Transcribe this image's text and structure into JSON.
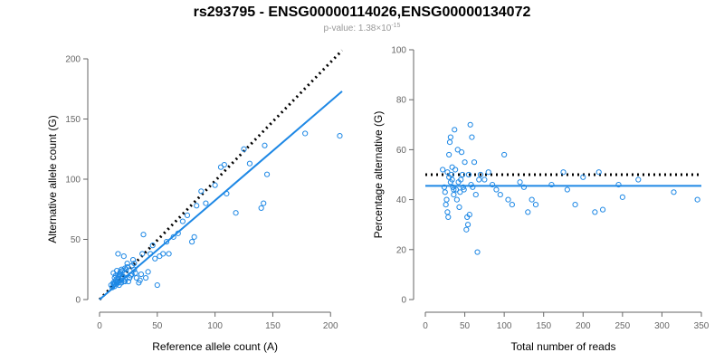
{
  "figure": {
    "title": "rs293795 - ENSG00000114026,ENSG00000134072",
    "subtitle_prefix": "p-value: 1.38×10",
    "subtitle_exponent": "-15"
  },
  "chart_data": [
    {
      "type": "scatter",
      "xlabel": "Reference allele count (A)",
      "ylabel": "Alternative allele count (G)",
      "xlim": [
        0,
        210
      ],
      "ylim": [
        0,
        200
      ],
      "x_ticks": [
        "0",
        "50",
        "100",
        "150",
        "200"
      ],
      "y_ticks": [
        "0",
        "50",
        "100",
        "150",
        "200"
      ],
      "grid": false,
      "point_color": "#1e88e5",
      "fit_color": "#1e88e5",
      "series": [
        {
          "x": [
            10,
            11,
            12,
            12,
            13,
            13,
            14,
            14,
            15,
            15,
            16,
            16,
            17,
            17,
            18,
            18,
            19,
            19,
            20,
            20,
            21,
            22,
            22,
            23,
            24,
            25,
            26,
            27,
            28,
            29,
            30,
            31,
            32,
            34,
            35,
            36,
            37,
            38,
            40,
            42,
            44,
            46,
            48,
            50,
            52,
            55,
            58,
            60,
            64,
            68,
            72,
            76,
            80,
            82,
            84,
            88,
            92,
            100,
            105,
            108,
            110,
            118,
            125,
            130,
            140,
            142,
            143,
            145,
            178,
            208,
            12,
            14,
            16,
            18,
            20,
            22,
            24,
            26,
            28,
            30,
            17,
            19,
            21,
            23,
            15,
            13
          ],
          "y": [
            12,
            10,
            14,
            22,
            18,
            11,
            15,
            20,
            13,
            24,
            17,
            38,
            21,
            12,
            16,
            23,
            25,
            14,
            19,
            18,
            36,
            26,
            17,
            22,
            30,
            15,
            18,
            20,
            28,
            33,
            25,
            22,
            18,
            14,
            16,
            21,
            38,
            54,
            18,
            23,
            38,
            45,
            34,
            12,
            36,
            38,
            48,
            38,
            52,
            55,
            65,
            70,
            48,
            52,
            78,
            90,
            80,
            95,
            110,
            112,
            88,
            72,
            125,
            113,
            76,
            80,
            128,
            104,
            138,
            136,
            13,
            16,
            19,
            21,
            24,
            15,
            27,
            18,
            21,
            30,
            20,
            17,
            15,
            25,
            14,
            13
          ]
        }
      ],
      "reference_line": {
        "style": "dotted",
        "color": "#000000",
        "x": [
          0,
          210
        ],
        "y": [
          0,
          207
        ]
      },
      "fit_line": {
        "style": "solid",
        "x": [
          0,
          210
        ],
        "y": [
          0,
          173
        ]
      }
    },
    {
      "type": "scatter",
      "xlabel": "Total number of reads",
      "ylabel": "Percentage alternative (G)",
      "xlim": [
        0,
        350
      ],
      "ylim": [
        0,
        100
      ],
      "x_ticks": [
        "0",
        "50",
        "100",
        "150",
        "200",
        "250",
        "300",
        "350"
      ],
      "y_ticks": [
        "0",
        "20",
        "40",
        "60",
        "80",
        "100"
      ],
      "grid": false,
      "point_color": "#1e88e5",
      "fit_color": "#1e88e5",
      "series": [
        {
          "x": [
            22,
            24,
            25,
            26,
            27,
            28,
            29,
            30,
            31,
            32,
            33,
            34,
            35,
            36,
            37,
            38,
            39,
            40,
            41,
            42,
            43,
            44,
            45,
            46,
            47,
            48,
            49,
            50,
            52,
            53,
            54,
            55,
            56,
            57,
            58,
            59,
            60,
            62,
            64,
            66,
            68,
            70,
            75,
            80,
            85,
            90,
            95,
            100,
            105,
            110,
            120,
            125,
            130,
            135,
            140,
            160,
            175,
            180,
            190,
            200,
            215,
            220,
            225,
            245,
            250,
            270,
            315,
            345,
            28,
            30,
            32,
            34,
            36
          ],
          "y": [
            52,
            45,
            43,
            38,
            40,
            35,
            33,
            58,
            63,
            65,
            50,
            48,
            45,
            42,
            68,
            52,
            44,
            40,
            60,
            47,
            37,
            43,
            48,
            59,
            50,
            45,
            44,
            55,
            28,
            33,
            30,
            50,
            34,
            70,
            46,
            65,
            45,
            55,
            42,
            19,
            48,
            50,
            48,
            51,
            46,
            44,
            42,
            58,
            40,
            38,
            47,
            45,
            35,
            40,
            38,
            46,
            51,
            44,
            38,
            49,
            35,
            51,
            36,
            46,
            41,
            48,
            43,
            40,
            51,
            49,
            47,
            53,
            44
          ]
        }
      ],
      "reference_line": {
        "style": "dotted",
        "color": "#000000",
        "x": [
          0,
          350
        ],
        "y": [
          50,
          50
        ]
      },
      "fit_line": {
        "style": "solid",
        "x": [
          0,
          350
        ],
        "y": [
          45.5,
          45.5
        ]
      }
    }
  ]
}
